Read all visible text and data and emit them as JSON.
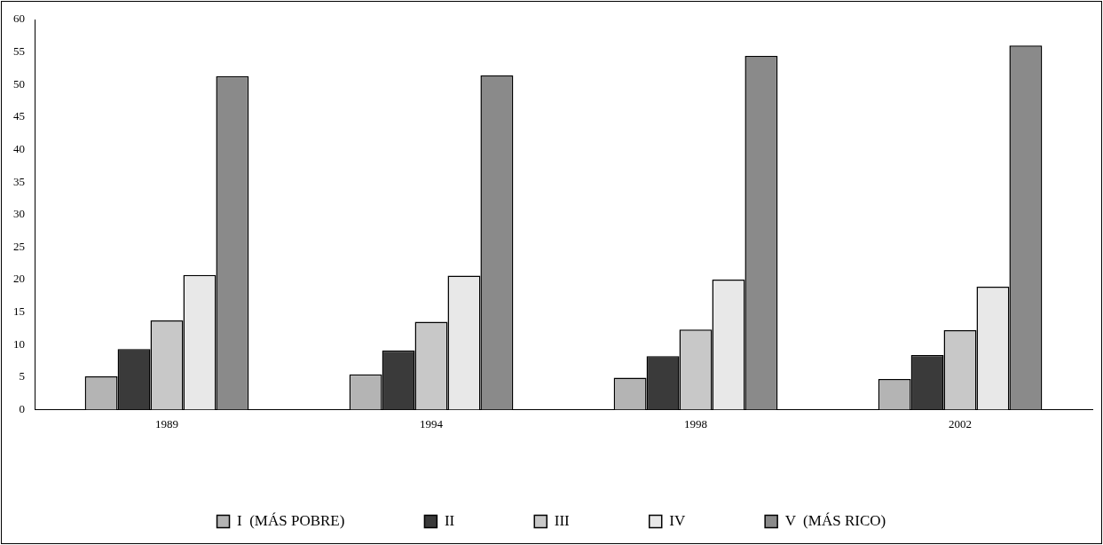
{
  "chart_data": {
    "type": "bar",
    "categories": [
      "1989",
      "1994",
      "1998",
      "2002"
    ],
    "series": [
      {
        "name": "I  (MÁS POBRE)",
        "color": "#b4b4b4",
        "values": [
          5.1,
          5.4,
          4.9,
          4.7
        ]
      },
      {
        "name": "II",
        "color": "#3a3a3a",
        "values": [
          9.3,
          9.1,
          8.2,
          8.4
        ]
      },
      {
        "name": "III",
        "color": "#c8c8c8",
        "values": [
          13.7,
          13.5,
          12.3,
          12.2
        ]
      },
      {
        "name": "IV",
        "color": "#e8e8e8",
        "values": [
          20.7,
          20.6,
          20.0,
          18.9
        ]
      },
      {
        "name": "V  (MÁS RICO)",
        "color": "#8a8a8a",
        "values": [
          51.3,
          51.4,
          54.4,
          56.0
        ]
      }
    ],
    "ylim": [
      0,
      60
    ],
    "yticks": [
      0,
      5,
      10,
      15,
      20,
      25,
      30,
      35,
      40,
      45,
      50,
      55,
      60
    ],
    "grid": false,
    "legend": "bottom"
  }
}
